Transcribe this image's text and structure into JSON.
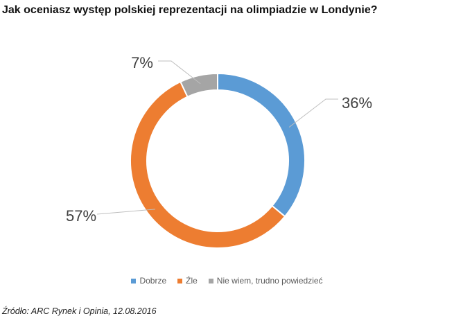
{
  "title": "Jak oceniasz występ polskiej reprezentacji na olimpiadzie w Londynie?",
  "chart_data": {
    "type": "pie",
    "variant": "donut",
    "categories": [
      "Dobrze",
      "Źle",
      "Nie wiem, trudno powiedzieć"
    ],
    "values": [
      36,
      57,
      7
    ],
    "labels": [
      "36%",
      "57%",
      "7%"
    ],
    "colors": [
      "#5B9BD5",
      "#ED7D31",
      "#A5A5A5"
    ],
    "legend_position": "bottom"
  },
  "source": "Źródło: ARC Rynek i Opinia, 12.08.2016"
}
